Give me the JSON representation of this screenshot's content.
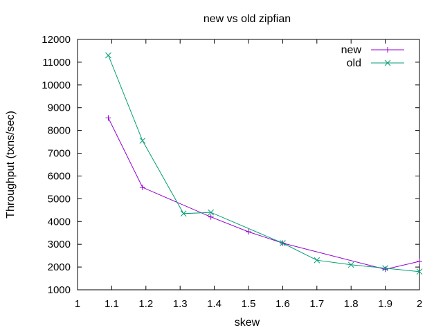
{
  "chart_data": {
    "type": "line",
    "title": "new vs old zipfian",
    "xlabel": "skew",
    "ylabel": "Throughput (txns/sec)",
    "xlim": [
      1,
      2
    ],
    "ylim": [
      1000,
      12000
    ],
    "x_ticks": [
      1,
      1.1,
      1.2,
      1.3,
      1.4,
      1.5,
      1.6,
      1.7,
      1.8,
      1.9,
      2
    ],
    "y_ticks": [
      1000,
      2000,
      3000,
      4000,
      5000,
      6000,
      7000,
      8000,
      9000,
      10000,
      11000,
      12000
    ],
    "grid": false,
    "legend_position": "top-right",
    "series": [
      {
        "name": "new",
        "color": "#9400d3",
        "marker": "plus",
        "x": [
          1.09,
          1.19,
          1.39,
          1.5,
          1.6,
          1.9,
          2.0
        ],
        "y": [
          8550,
          5500,
          4200,
          3550,
          3050,
          1900,
          2250
        ]
      },
      {
        "name": "old",
        "color": "#009e73",
        "marker": "cross",
        "x": [
          1.09,
          1.19,
          1.31,
          1.39,
          1.6,
          1.7,
          1.8,
          1.9,
          2.0
        ],
        "y": [
          11300,
          7550,
          4350,
          4400,
          3050,
          2300,
          2100,
          1950,
          1800
        ]
      }
    ]
  }
}
